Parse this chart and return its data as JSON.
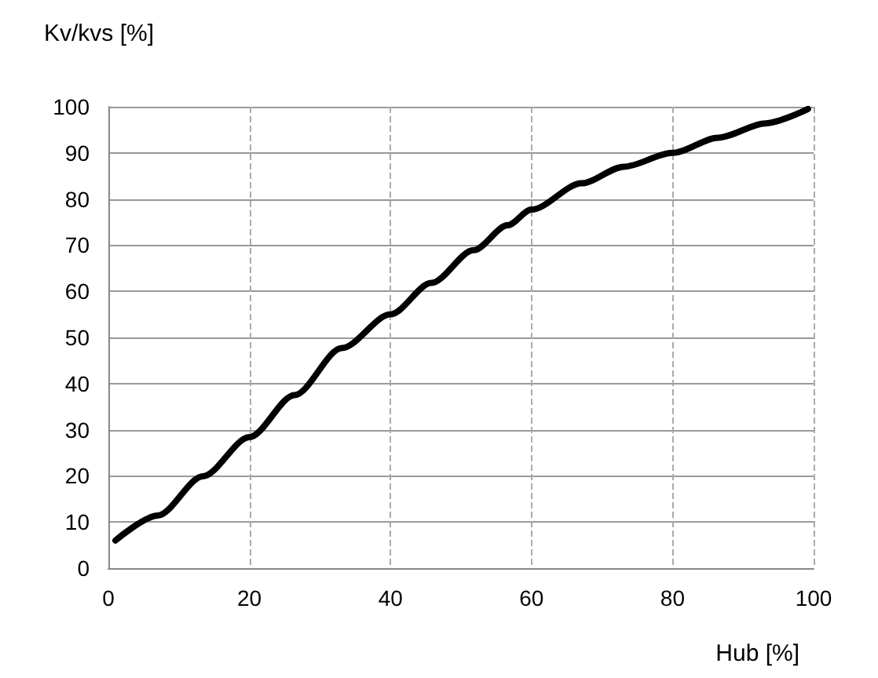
{
  "chart_data": {
    "type": "line",
    "xlabel": "Hub [%]",
    "ylabel": "Kv/kvs [%]",
    "x": [
      1,
      7,
      13.4,
      20,
      26.4,
      33.1,
      40,
      45.8,
      51.8,
      56.6,
      60,
      67.1,
      73.1,
      80,
      86.5,
      93.2,
      99.2
    ],
    "series": [
      {
        "color": "#000000",
        "values": [
          6,
          11.4,
          19.9,
          28.4,
          37.5,
          47.7,
          55,
          61.8,
          68.9,
          74.3,
          77.7,
          83.4,
          87,
          90,
          93.3,
          96.4,
          99.5
        ]
      }
    ],
    "xlim": [
      0,
      100
    ],
    "xticks": [
      0,
      20,
      40,
      60,
      80,
      100
    ],
    "ylim": [
      0,
      100
    ],
    "yticks": [
      0,
      10,
      20,
      30,
      40,
      50,
      60,
      70,
      80,
      90,
      100
    ],
    "grid": true,
    "marker": "none",
    "line_style": "solid"
  }
}
